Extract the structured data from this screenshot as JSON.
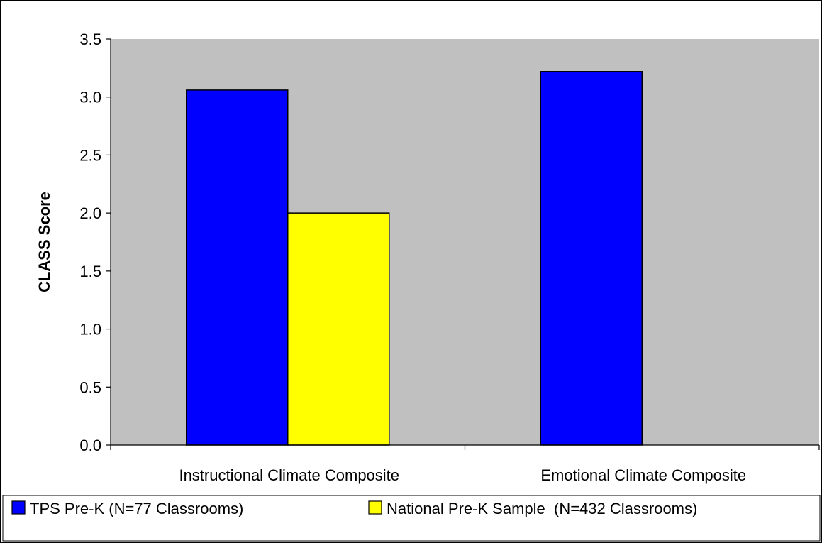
{
  "chart_data": {
    "type": "bar",
    "categories": [
      "Instructional Climate Composite",
      "Emotional Climate Composite"
    ],
    "series": [
      {
        "name": "TPS Pre-K (N=77 Classrooms)",
        "values": [
          3.06,
          3.22
        ],
        "color": "#0000ff"
      },
      {
        "name": "National Pre-K Sample  (N=432 Classrooms)",
        "values": [
          2.0,
          null
        ],
        "color": "#ffff00"
      }
    ],
    "ylabel": "CLASS Score",
    "xlabel": "",
    "ylim": [
      0,
      3.5
    ],
    "yticks": [
      "0.0",
      "0.5",
      "1.0",
      "1.5",
      "2.0",
      "2.5",
      "3.0",
      "3.5"
    ],
    "grid": false,
    "plot_background": "#c0c0c0",
    "legend_position": "bottom"
  }
}
